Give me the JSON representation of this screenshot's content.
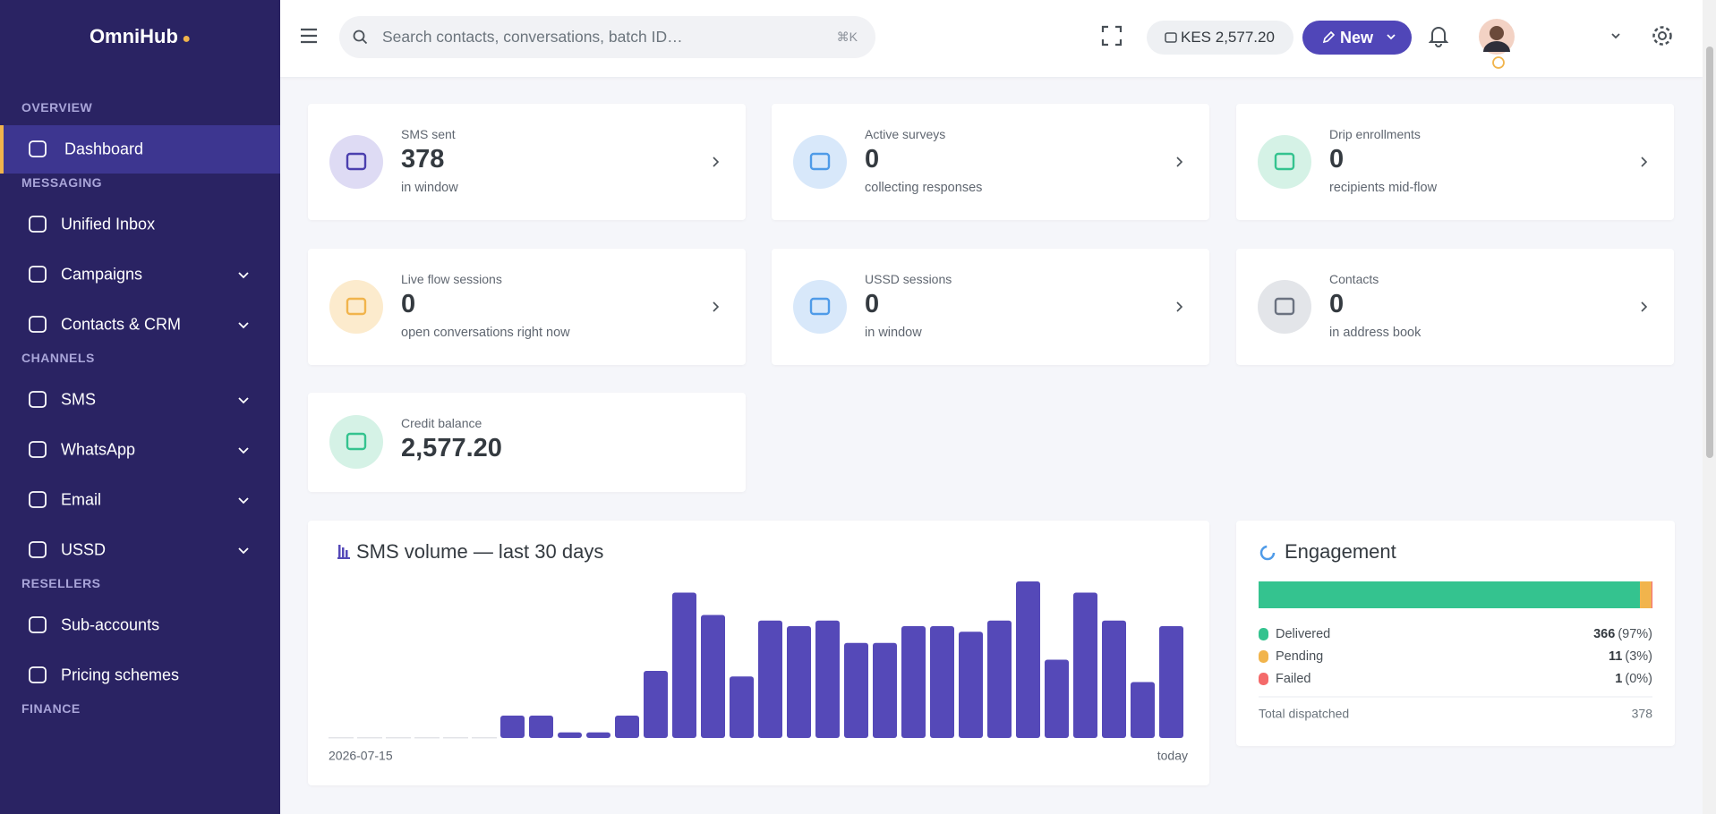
{
  "brand": "OmniHub",
  "sidebar": {
    "sections": [
      {
        "title": "OVERVIEW",
        "items": [
          {
            "label": "Dashboard",
            "active": true
          }
        ]
      },
      {
        "title": "MESSAGING",
        "items": [
          {
            "label": "Unified Inbox"
          },
          {
            "label": "Campaigns",
            "expandable": true
          },
          {
            "label": "Contacts & CRM",
            "expandable": true
          }
        ]
      },
      {
        "title": "CHANNELS",
        "items": [
          {
            "label": "SMS",
            "expandable": true
          },
          {
            "label": "WhatsApp",
            "expandable": true
          },
          {
            "label": "Email",
            "expandable": true
          },
          {
            "label": "USSD",
            "expandable": true
          }
        ]
      },
      {
        "title": "RESELLERS",
        "items": [
          {
            "label": "Sub-accounts"
          },
          {
            "label": "Pricing schemes"
          }
        ]
      },
      {
        "title": "FINANCE",
        "items": []
      }
    ]
  },
  "topbar": {
    "search_placeholder": "Search contacts, conversations, batch ID…",
    "search_shortcut": "⌘K",
    "balance": "KES 2,577.20",
    "new_button": "New"
  },
  "cards": [
    {
      "label": "SMS sent",
      "value": "378",
      "sub": "in window",
      "color": "#4b3fae",
      "bg": "#dedbf4"
    },
    {
      "label": "Active surveys",
      "value": "0",
      "sub": "collecting responses",
      "color": "#4f9be8",
      "bg": "#d8e8fa"
    },
    {
      "label": "Drip enrollments",
      "value": "0",
      "sub": "recipients mid-flow",
      "color": "#34c38f",
      "bg": "#d5f2e6"
    },
    {
      "label": "Live flow sessions",
      "value": "0",
      "sub": "open conversations right now",
      "color": "#f1b44c",
      "bg": "#fcebcd"
    },
    {
      "label": "USSD sessions",
      "value": "0",
      "sub": "in window",
      "color": "#4f9be8",
      "bg": "#d8e8fa"
    },
    {
      "label": "Contacts",
      "value": "0",
      "sub": "in address book",
      "color": "#6b7280",
      "bg": "#e3e5e9"
    },
    {
      "label": "Credit balance",
      "value": "2,577.20",
      "color": "#34c38f",
      "bg": "#d5f2e6"
    }
  ],
  "chart_data": [
    {
      "type": "bar",
      "title": "SMS volume — last 30 days",
      "color": "#5549b8",
      "categories": [
        "2026-07-15",
        null,
        null,
        null,
        null,
        null,
        null,
        null,
        null,
        null,
        null,
        null,
        null,
        null,
        null,
        null,
        null,
        null,
        null,
        null,
        null,
        null,
        null,
        null,
        null,
        null,
        null,
        null,
        null,
        "today"
      ],
      "values": [
        0,
        0,
        0,
        0,
        0,
        0,
        4,
        4,
        1,
        1,
        4,
        12,
        26,
        22,
        11,
        21,
        20,
        21,
        17,
        17,
        20,
        20,
        19,
        21,
        28,
        14,
        26,
        21,
        10,
        20
      ],
      "ylim": [
        0,
        28
      ]
    },
    {
      "type": "stacked_bar",
      "title": "Engagement",
      "series": [
        {
          "name": "Delivered",
          "color": "#34c38f",
          "values": [
            366
          ],
          "share_labels": [
            "(97%)"
          ]
        },
        {
          "name": "Pending",
          "color": "#f1b44c",
          "values": [
            11
          ],
          "share_labels": [
            "(3%)"
          ]
        },
        {
          "name": "Failed",
          "color": "#f46a6a",
          "values": [
            1
          ],
          "share_labels": [
            "(0%)"
          ]
        }
      ],
      "total_label": "Total dispatched",
      "total": 378
    }
  ]
}
